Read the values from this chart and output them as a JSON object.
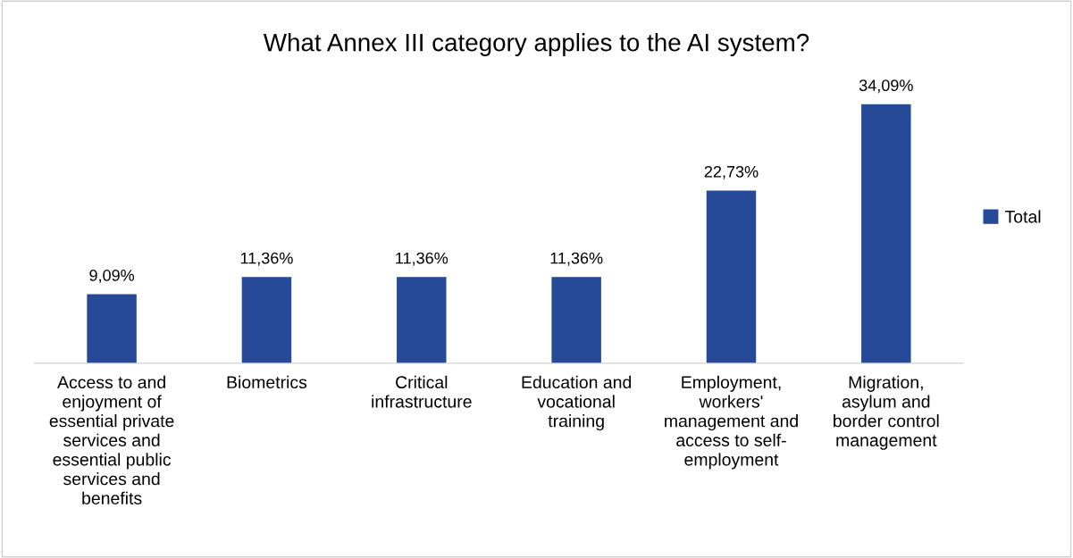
{
  "chart_data": {
    "type": "bar",
    "title": "What Annex III category applies to the AI system?",
    "categories": [
      "Access to and\nenjoyment of\nessential private\nservices and\nessential public\nservices and\nbenefits",
      "Biometrics",
      "Critical\ninfrastructure",
      "Education and\nvocational\ntraining",
      "Employment,\nworkers'\nmanagement and\naccess to self-\nemployment",
      "Migration,\nasylum and\nborder control\nmanagement"
    ],
    "series": [
      {
        "name": "Total",
        "color": "#264a97",
        "values": [
          9.09,
          11.36,
          11.36,
          11.36,
          22.73,
          34.09
        ],
        "value_labels": [
          "9,09%",
          "11,36%",
          "11,36%",
          "11,36%",
          "22,73%",
          "34,09%"
        ]
      }
    ],
    "legend": "right",
    "grid": false
  }
}
